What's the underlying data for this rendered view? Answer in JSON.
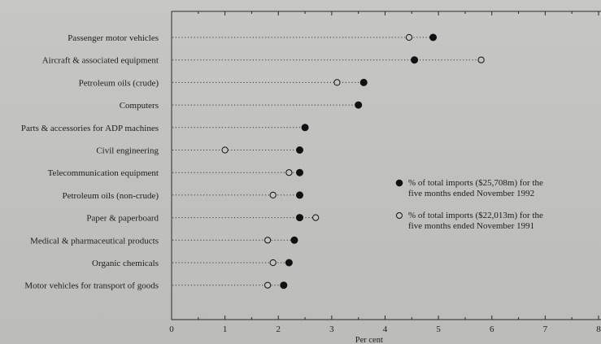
{
  "chart_data": {
    "type": "scatter",
    "xlabel": "Per cent",
    "xlim": [
      0,
      8
    ],
    "x_ticks": [
      "0",
      "1",
      "2",
      "3",
      "4",
      "5",
      "6",
      "7",
      "8"
    ],
    "grid": false,
    "legend_position": "right",
    "categories": [
      "Passenger motor vehicles",
      "Aircraft & associated equipment",
      "Petroleum oils (crude)",
      "Computers",
      "Parts & accessories for ADP machines",
      "Civil engineering",
      "Telecommunication equipment",
      "Petroleum oils (non-crude)",
      "Paper & paperboard",
      "Medical & pharmaceutical products",
      "Organic chemicals",
      "Motor vehicles for transport of goods"
    ],
    "series": [
      {
        "name": "% of total imports ($25,708m) for the five months ended November 1992",
        "legend_lines": [
          "% of total imports ($25,708m) for the",
          "five months ended November 1992"
        ],
        "marker": "filled",
        "color": "#111111",
        "values": [
          4.9,
          4.55,
          3.6,
          3.5,
          2.5,
          2.4,
          2.4,
          2.4,
          2.4,
          2.3,
          2.2,
          2.1
        ]
      },
      {
        "name": "% of total imports ($22,013m) for the five months ended November 1991",
        "legend_lines": [
          "% of total imports ($22,013m) for the",
          "five months ended November 1991"
        ],
        "marker": "open",
        "color": "#111111",
        "values": [
          4.45,
          5.8,
          3.1,
          null,
          null,
          1.0,
          2.2,
          1.9,
          2.7,
          1.8,
          1.9,
          1.8
        ]
      }
    ]
  }
}
